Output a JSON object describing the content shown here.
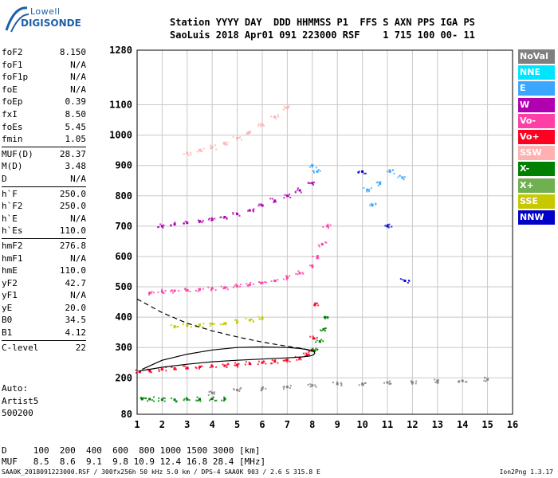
{
  "logo": {
    "line1": "Lowell",
    "line2": "DIGISONDE"
  },
  "header": {
    "line1": "Station YYYY DAY  DDD HHMMSS P1  FFS S AXN PPS IGA PS",
    "line2": "SaoLuis 2018 Apr01 091 223000 RSF    1 715 100 00- 11"
  },
  "params": [
    [
      {
        "name": "foF2",
        "value": "8.150"
      },
      {
        "name": "foF1",
        "value": "N/A"
      },
      {
        "name": "foF1p",
        "value": "N/A"
      },
      {
        "name": "foE",
        "value": "N/A"
      },
      {
        "name": "foEp",
        "value": "0.39"
      },
      {
        "name": "fxI",
        "value": "8.50"
      },
      {
        "name": "foEs",
        "value": "5.45"
      },
      {
        "name": "fmin",
        "value": "1.05"
      }
    ],
    [
      {
        "name": "MUF(D)",
        "value": "28.37"
      },
      {
        "name": "M(D)",
        "value": "3.48"
      },
      {
        "name": "D",
        "value": "N/A"
      }
    ],
    [
      {
        "name": "h`F",
        "value": "250.0"
      },
      {
        "name": "h`F2",
        "value": "250.0"
      },
      {
        "name": "h`E",
        "value": "N/A"
      },
      {
        "name": "h`Es",
        "value": "110.0"
      }
    ],
    [
      {
        "name": "hmF2",
        "value": "276.8"
      },
      {
        "name": "hmF1",
        "value": "N/A"
      },
      {
        "name": "hmE",
        "value": "110.0"
      },
      {
        "name": "yF2",
        "value": "42.7"
      },
      {
        "name": "yF1",
        "value": "N/A"
      },
      {
        "name": "yE",
        "value": "20.0"
      },
      {
        "name": "B0",
        "value": "34.5"
      },
      {
        "name": "B1",
        "value": "4.12"
      }
    ],
    [
      {
        "name": "C-level",
        "value": "22"
      }
    ]
  ],
  "auto": {
    "line1": "Auto:",
    "line2": "Artist5",
    "line3": "500200"
  },
  "bottom": {
    "d_line": "D     100  200  400  600  800 1000 1500 3000 [km]",
    "muf_line": "MUF   8.5  8.6  9.1  9.8 10.9 12.4 16.8 28.4 [MHz]"
  },
  "footer": {
    "text": "SAA0K_2018091223000.RSF / 300fx256h 50 kHz 5.0 km / DPS-4 SAA0K 903 / 2.6 S 315.8 E",
    "version": "Ion2Png 1.3.17"
  },
  "legend": [
    {
      "label": "NoVal",
      "color": "#808080"
    },
    {
      "label": "NNE",
      "color": "#00e5ff"
    },
    {
      "label": "E",
      "color": "#3aa6ff"
    },
    {
      "label": "W",
      "color": "#b000b0"
    },
    {
      "label": "Vo-",
      "color": "#ff3fa8"
    },
    {
      "label": "Vo+",
      "color": "#ff0020"
    },
    {
      "label": "SSW",
      "color": "#ffb0b0"
    },
    {
      "label": "X-",
      "color": "#008000"
    },
    {
      "label": "X+",
      "color": "#70b050"
    },
    {
      "label": "SSE",
      "color": "#c8c800"
    },
    {
      "label": "NNW",
      "color": "#0000c8"
    }
  ],
  "chart_data": {
    "type": "scatter",
    "xlim": [
      1,
      16
    ],
    "ylim": [
      80,
      1280
    ],
    "x_ticks": [
      1,
      2,
      3,
      4,
      5,
      6,
      7,
      8,
      9,
      10,
      11,
      12,
      13,
      14,
      15,
      16
    ],
    "y_ticks": [
      80,
      200,
      300,
      400,
      500,
      600,
      700,
      800,
      900,
      1000,
      1100,
      1280
    ],
    "grid": true,
    "series": [
      {
        "name": "Vo+",
        "color": "#ff0020",
        "x": [
          1.1,
          1.5,
          2,
          2.5,
          3,
          3.5,
          4,
          4.5,
          5,
          5.5,
          6,
          6.5,
          7,
          7.5,
          7.8,
          8,
          8.05,
          8.1
        ],
        "y": [
          220,
          224,
          228,
          231,
          233,
          236,
          238,
          240,
          243,
          246,
          250,
          254,
          259,
          266,
          275,
          290,
          330,
          440
        ]
      },
      {
        "name": "Vo-",
        "color": "#ff3fa8",
        "x": [
          1.5,
          2,
          2.5,
          3,
          3.5,
          4,
          4.5,
          5,
          5.5,
          6,
          6.5,
          7,
          7.5,
          8,
          8.2,
          8.4,
          8.6
        ],
        "y": [
          480,
          484,
          487,
          489,
          492,
          495,
          498,
          502,
          507,
          513,
          520,
          530,
          545,
          570,
          600,
          640,
          700
        ]
      },
      {
        "name": "W",
        "color": "#b000b0",
        "x": [
          2,
          2.5,
          3,
          3.5,
          4,
          4.5,
          5,
          5.5,
          6,
          6.5,
          7,
          7.5,
          8
        ],
        "y": [
          700,
          706,
          711,
          716,
          722,
          730,
          740,
          752,
          768,
          784,
          800,
          818,
          842
        ]
      },
      {
        "name": "SSW",
        "color": "#ffb0b0",
        "x": [
          3,
          3.5,
          4,
          4.5,
          5,
          5.5,
          6,
          6.5,
          7
        ],
        "y": [
          940,
          950,
          960,
          972,
          990,
          1010,
          1035,
          1060,
          1090
        ]
      },
      {
        "name": "X-",
        "color": "#008000",
        "x": [
          1.2,
          1.5,
          2,
          2.5,
          3,
          3.5,
          4,
          4.5,
          8.1,
          8.3,
          8.45,
          8.5
        ],
        "y": [
          130,
          130,
          128,
          128,
          129,
          130,
          131,
          130,
          290,
          320,
          360,
          400
        ]
      },
      {
        "name": "SSE",
        "color": "#c8c800",
        "x": [
          2.5,
          3,
          3.5,
          4,
          4.5,
          5,
          5.5,
          6
        ],
        "y": [
          370,
          372,
          375,
          378,
          380,
          384,
          390,
          396
        ]
      },
      {
        "name": "E",
        "color": "#3aa6ff",
        "x": [
          8,
          8.2,
          10.2,
          10.4,
          10.7,
          11.1,
          11.6
        ],
        "y": [
          900,
          880,
          820,
          770,
          840,
          880,
          860
        ]
      },
      {
        "name": "NNW",
        "color": "#0000c8",
        "x": [
          10,
          11,
          11.7
        ],
        "y": [
          880,
          700,
          520
        ]
      },
      {
        "name": "NoVal",
        "color": "#808080",
        "x": [
          4,
          5,
          6,
          7,
          8,
          9,
          10,
          11,
          12,
          13,
          14,
          15
        ],
        "y": [
          150,
          160,
          165,
          170,
          175,
          180,
          180,
          185,
          185,
          190,
          190,
          195
        ]
      }
    ],
    "profile_solid": {
      "x": [
        1.05,
        2,
        3,
        4,
        5,
        6,
        7,
        7.6,
        7.9,
        8.05,
        8.1,
        8.05,
        7.8,
        7.5,
        7,
        6,
        5,
        4,
        3,
        2,
        1.2
      ],
      "y": [
        222,
        235,
        245,
        253,
        258,
        262,
        266,
        269,
        272,
        276,
        282,
        288,
        293,
        297,
        300,
        302,
        300,
        292,
        278,
        258,
        228
      ]
    },
    "profile_dashed": {
      "x": [
        1,
        2,
        3,
        4,
        5,
        6,
        7,
        7.5,
        8,
        8.1
      ],
      "y": [
        460,
        415,
        380,
        355,
        335,
        318,
        304,
        298,
        290,
        285
      ]
    }
  }
}
